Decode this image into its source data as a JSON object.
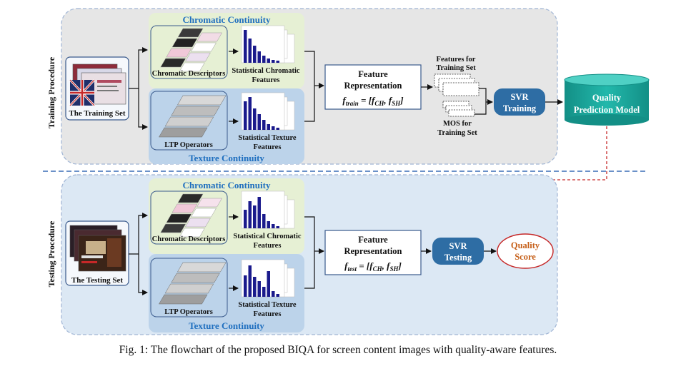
{
  "training": {
    "side_label": "Training Procedure",
    "input_label": "The  Training  Set",
    "chromatic_title": "Chromatic  Continuity",
    "chromatic_descriptors": "Chromatic Descriptors",
    "chromatic_features": [
      "Statistical  Chromatic",
      "Features"
    ],
    "texture_title": "Texture  Continuity",
    "ltp_label": "LTP   Operators",
    "texture_features": [
      "Statistical  Texture",
      "Features"
    ],
    "feature_rep": [
      "Feature",
      "Representation"
    ],
    "formula_lhs": "f",
    "formula_sub": "train",
    "formula_rhs": " = [f",
    "formula_ch": "CH",
    "formula_comma": ", f",
    "formula_sh": "SH",
    "formula_end": "]",
    "features_for": [
      "Features for",
      "Training Set"
    ],
    "mos_for": [
      "MOS for",
      "Training Set"
    ],
    "svr": [
      "SVR",
      "Training"
    ],
    "model": [
      "Quality",
      "Prediction Model"
    ]
  },
  "testing": {
    "side_label": "Testing Procedure",
    "input_label": "The  Testing  Set",
    "chromatic_title": "Chromatic  Continuity",
    "chromatic_descriptors": "Chromatic Descriptors",
    "chromatic_features": [
      "Statistical  Chromatic",
      "Features"
    ],
    "texture_title": "Texture  Continuity",
    "ltp_label": "LTP   Operators",
    "texture_features": [
      "Statistical Texture",
      "Features"
    ],
    "feature_rep": [
      "Feature",
      "Representation"
    ],
    "formula_lhs": "f",
    "formula_sub": "test",
    "formula_rhs": " = [f",
    "formula_ch": "CH",
    "formula_comma": ", f",
    "formula_sh": "SH",
    "formula_end": "]",
    "svr": [
      "SVR",
      "Testing"
    ],
    "score": [
      "Quality",
      "Score"
    ]
  },
  "caption": "Fig. 1: The flowchart of the proposed BIQA for screen content images with quality-aware features.",
  "colors": {
    "panel_training": "#e6e6e6",
    "panel_testing": "#dce8f4",
    "panel_border": "#9fb4d4",
    "chromatic_bg": "#e6f0d4",
    "texture_bg": "#bcd3ea",
    "title_blue": "#1f6fbf",
    "box_border": "#3a5a8c",
    "svr_fill": "#2e6da4",
    "model_fill": "#1aa59a",
    "score_text": "#c6601a",
    "score_border": "#c62828",
    "bar_blue": "#1a1a8c",
    "dashed_line": "#3a6db5",
    "model_link": "#c62828"
  }
}
